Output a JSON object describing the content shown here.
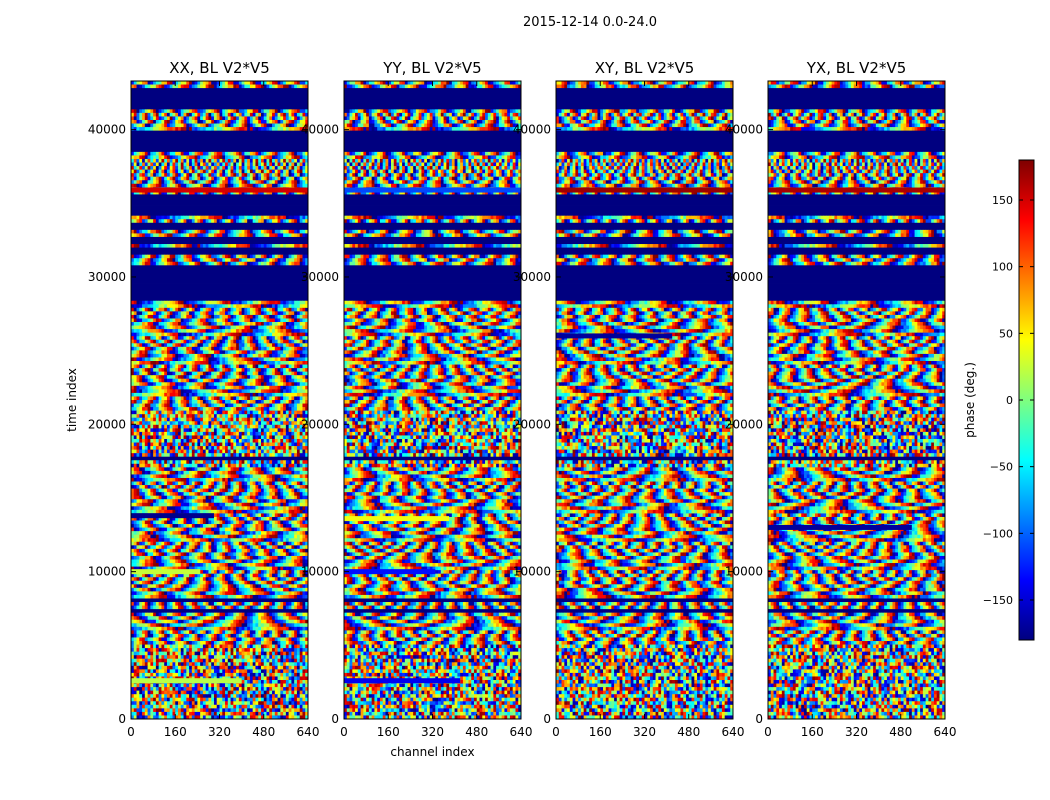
{
  "suptitle": "2015-12-14 0.0-24.0",
  "chart_data": [
    {
      "type": "heatmap",
      "title": "XX, BL V2*V5",
      "xlabel": "",
      "ylabel": "time index",
      "xticks": [
        0,
        160,
        320,
        480,
        640
      ],
      "yticks": [
        0,
        10000,
        20000,
        30000,
        40000
      ],
      "xlim": [
        0,
        640
      ],
      "ylim": [
        0,
        43300
      ],
      "z_range": [
        -180,
        180
      ],
      "notable_bands": [
        {
          "y": 2600,
          "value": 20,
          "x_to": 400
        },
        {
          "y": 10000,
          "value": 25,
          "x_to": 250
        },
        {
          "y": 13800,
          "value": -175,
          "x_to": 300
        },
        {
          "y": 35900,
          "value": 150,
          "x_to": 640
        }
      ]
    },
    {
      "type": "heatmap",
      "title": "YY, BL V2*V5",
      "xlabel": "channel index",
      "ylabel": "",
      "xticks": [
        0,
        160,
        320,
        480,
        640
      ],
      "yticks": [
        0,
        10000,
        20000,
        30000,
        40000
      ],
      "xlim": [
        0,
        640
      ],
      "ylim": [
        0,
        43300
      ],
      "z_range": [
        -180,
        180
      ],
      "notable_bands": [
        {
          "y": 2600,
          "value": -140,
          "x_to": 420
        },
        {
          "y": 10000,
          "value": -130,
          "x_to": 330
        },
        {
          "y": 13600,
          "value": 40,
          "x_to": 380
        },
        {
          "y": 35900,
          "value": -110,
          "x_to": 640
        }
      ]
    },
    {
      "type": "heatmap",
      "title": "XY, BL V2*V5",
      "xlabel": "",
      "ylabel": "",
      "xticks": [
        0,
        160,
        320,
        480,
        640
      ],
      "yticks": [
        0,
        10000,
        20000,
        30000,
        40000
      ],
      "xlim": [
        0,
        640
      ],
      "ylim": [
        0,
        43300
      ],
      "z_range": [
        -180,
        180
      ],
      "notable_bands": [
        {
          "y": 26000,
          "value": -170,
          "x_to": 420
        },
        {
          "y": 35900,
          "value": 170,
          "x_to": 640
        }
      ]
    },
    {
      "type": "heatmap",
      "title": "YX, BL V2*V5",
      "xlabel": "",
      "ylabel": "",
      "xticks": [
        0,
        160,
        320,
        480,
        640
      ],
      "yticks": [
        0,
        10000,
        20000,
        30000,
        40000
      ],
      "xlim": [
        0,
        640
      ],
      "ylim": [
        0,
        43300
      ],
      "z_range": [
        -180,
        180
      ],
      "notable_bands": [
        {
          "y": 13000,
          "value": -170,
          "x_to": 520
        },
        {
          "y": 35900,
          "value": 165,
          "x_to": 640
        }
      ]
    }
  ],
  "colorbar": {
    "label": "phase (deg.)",
    "ticks": [
      -150,
      -100,
      -50,
      0,
      50,
      100,
      150
    ],
    "range": [
      -180,
      180
    ],
    "colormap": "jet",
    "colors": [
      "#00007f",
      "#0000ff",
      "#007fff",
      "#00ffff",
      "#7fff7f",
      "#ffff00",
      "#ff7f00",
      "#ff0000",
      "#7f0000"
    ]
  },
  "flagged_rows": [
    {
      "y0": 41300,
      "y1": 42800
    },
    {
      "y0": 38600,
      "y1": 40000
    },
    {
      "y0": 34100,
      "y1": 35500
    },
    {
      "y0": 33100,
      "y1": 33600
    },
    {
      "y0": 32300,
      "y1": 32700
    },
    {
      "y0": 31600,
      "y1": 31950
    },
    {
      "y0": 28500,
      "y1": 30800
    },
    {
      "y0": 17650,
      "y1": 17850
    },
    {
      "y0": 8000,
      "y1": 8250
    },
    {
      "y0": 7300,
      "y1": 7500
    }
  ],
  "dense_fringe_rows": [
    {
      "y0": 40200,
      "y1": 41100
    },
    {
      "y0": 36000,
      "y1": 38400
    }
  ]
}
